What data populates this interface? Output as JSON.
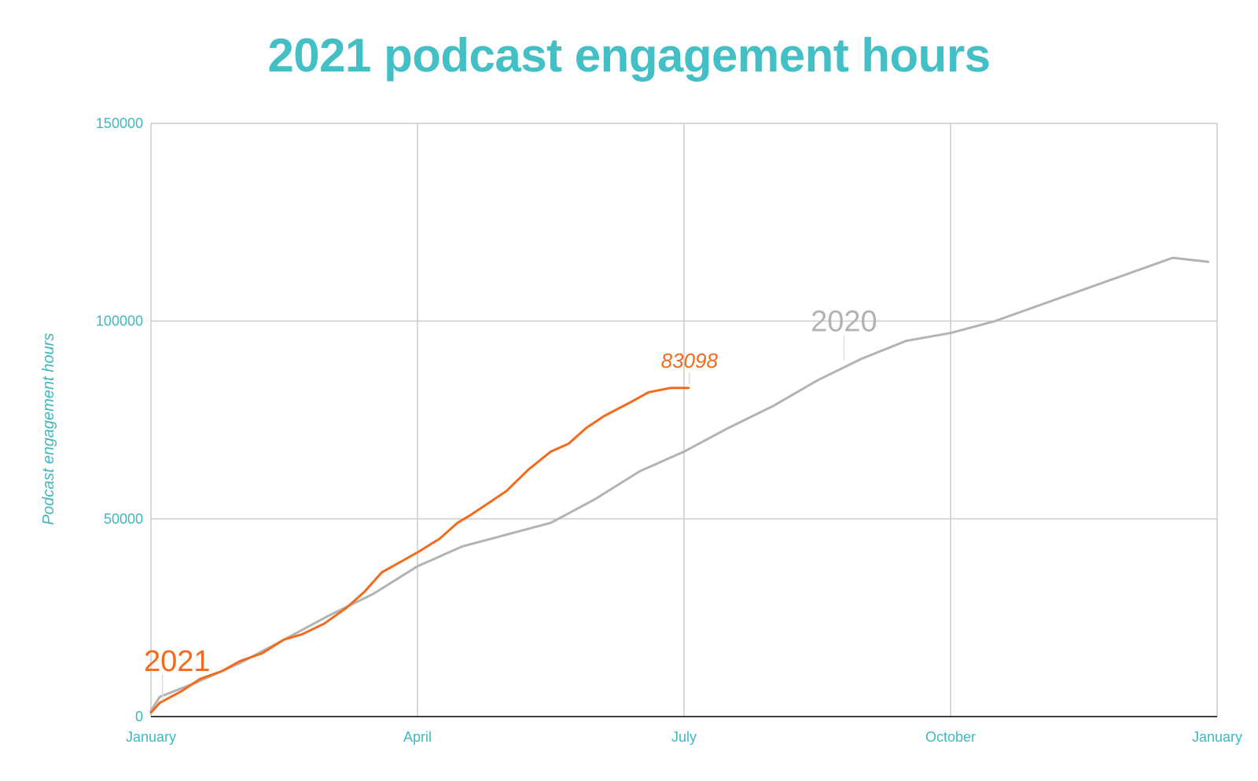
{
  "chart_data": {
    "type": "line",
    "title": "2021 podcast engagement hours",
    "ylabel": "Podcast engagement hours",
    "xlabel": "",
    "ylim": [
      0,
      150000
    ],
    "xlim": [
      0,
      12
    ],
    "x_unit": "months since January",
    "y_ticks": [
      0,
      50000,
      100000,
      150000
    ],
    "y_tick_labels": [
      "0",
      "50000",
      "100000",
      "150000"
    ],
    "x_ticks": [
      0,
      3,
      6,
      9,
      12
    ],
    "x_tick_labels": [
      "January",
      "April",
      "July",
      "October",
      "January"
    ],
    "grid": true,
    "legend": "none",
    "colors": {
      "title": "#43bfc6",
      "axis_text": "#3fb8c0",
      "grid": "#cccccc",
      "axis_line": "#000000",
      "series_2021": "#f26b1d",
      "series_2020": "#b3b3b3"
    },
    "series": [
      {
        "name": "2021",
        "color": "#f26b1d",
        "label_position": "start",
        "end_value_label": "83098",
        "x": [
          0.0,
          0.1,
          0.35,
          0.55,
          0.8,
          1.0,
          1.25,
          1.5,
          1.7,
          1.95,
          2.2,
          2.4,
          2.6,
          2.8,
          3.0,
          3.25,
          3.45,
          3.6,
          3.8,
          4.0,
          4.25,
          4.5,
          4.7,
          4.9,
          5.1,
          5.4,
          5.6,
          5.85,
          6.05
        ],
        "y": [
          1000,
          3500,
          6500,
          9500,
          11500,
          14000,
          16000,
          19500,
          20800,
          23500,
          27500,
          31500,
          36500,
          39000,
          41500,
          45000,
          49000,
          51000,
          54000,
          57000,
          62500,
          67000,
          69000,
          73000,
          76000,
          79500,
          82000,
          83098,
          83098
        ]
      },
      {
        "name": "2020",
        "color": "#b3b3b3",
        "label_position": "mid-upper",
        "x": [
          0.0,
          0.1,
          0.5,
          1.0,
          1.5,
          2.0,
          2.5,
          3.0,
          3.5,
          4.0,
          4.25,
          4.5,
          4.75,
          5.0,
          5.25,
          5.5,
          6.0,
          6.5,
          7.0,
          7.5,
          8.0,
          8.5,
          9.0,
          9.5,
          10.0,
          10.5,
          11.0,
          11.5,
          11.9
        ],
        "y": [
          1500,
          5000,
          8500,
          13500,
          19500,
          25500,
          31000,
          38000,
          43000,
          46000,
          47500,
          49000,
          52000,
          55000,
          58500,
          62000,
          67000,
          73000,
          78500,
          85000,
          90500,
          95000,
          97000,
          100000,
          104000,
          108000,
          112000,
          116000,
          115000
        ]
      }
    ]
  }
}
